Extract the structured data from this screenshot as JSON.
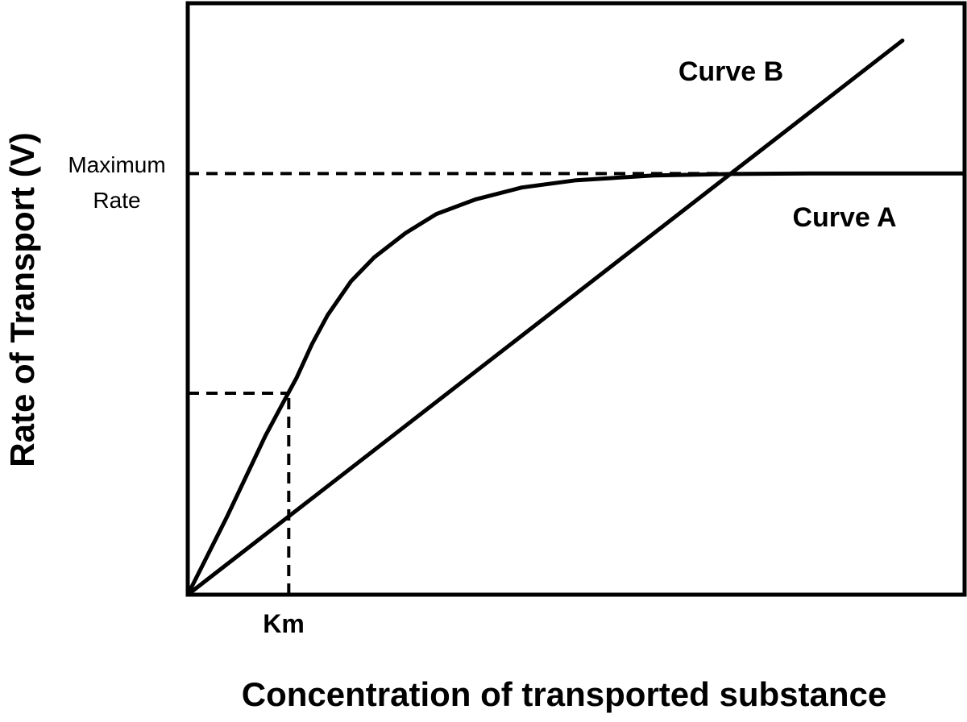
{
  "chart_data": {
    "type": "line",
    "title": "",
    "xlabel": "Concentration of transported substance",
    "ylabel": "Rate of Transport (V)",
    "xlim": [
      0,
      100
    ],
    "ylim": [
      0,
      100
    ],
    "grid": false,
    "colors": {
      "line": "#000000",
      "background": "#ffffff"
    },
    "series": [
      {
        "name": "Curve A",
        "label_position": "right",
        "x": [
          0,
          5,
          10,
          13,
          14,
          16,
          18,
          21,
          24,
          28,
          32,
          37,
          43,
          50,
          60,
          70,
          80,
          90,
          100
        ],
        "y": [
          0,
          16,
          33,
          42,
          45,
          52,
          58,
          65,
          70,
          75,
          79,
          82,
          84.5,
          86,
          87,
          87.3,
          87.4,
          87.4,
          87.4
        ]
      },
      {
        "name": "Curve B",
        "label_position": "top",
        "x": [
          0,
          92
        ],
        "y": [
          0,
          115
        ]
      }
    ],
    "reference_lines": [
      {
        "orientation": "horizontal",
        "y": 87.4,
        "x_to": 69,
        "style": "dashed",
        "label": "Maximum Rate"
      },
      {
        "orientation": "horizontal",
        "y": 41.8,
        "x_to": 13,
        "style": "dashed",
        "label": ""
      },
      {
        "orientation": "vertical",
        "x": 13,
        "y_to": 41.8,
        "style": "dashed",
        "label": "Km"
      }
    ]
  }
}
